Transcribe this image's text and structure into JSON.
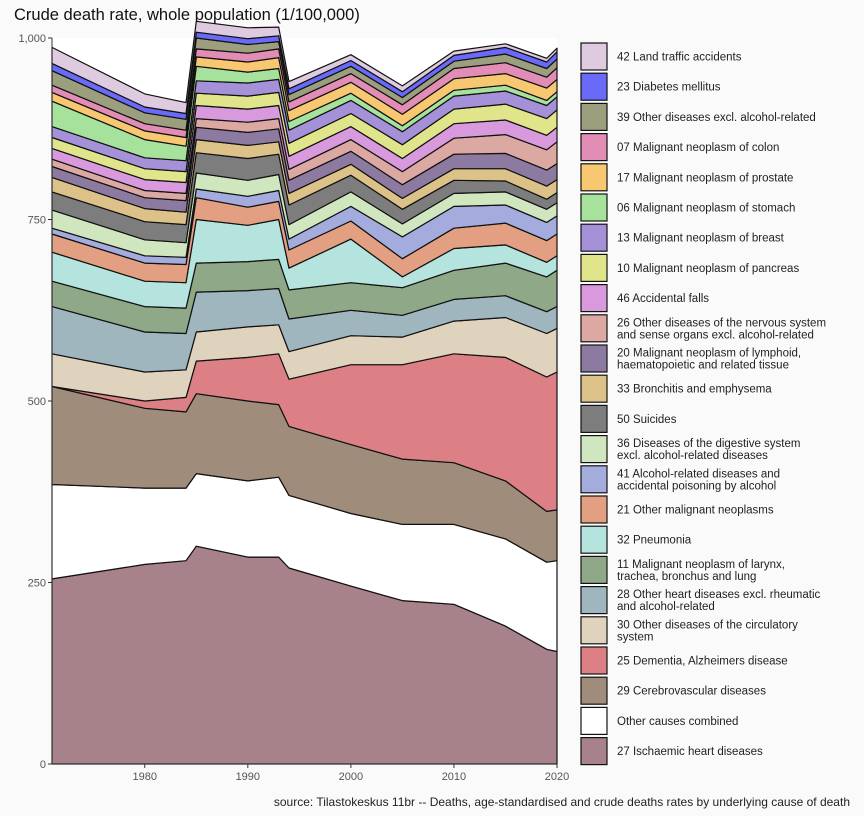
{
  "title": "Crude death rate, whole population (1/100,000)",
  "source": "source: Tilastokeskus 11br -- Deaths, age-standardised and crude deaths rates by underlying cause of death",
  "chart_data": {
    "type": "area",
    "stacked": true,
    "x_range": [
      1971,
      2020
    ],
    "ylim": [
      0,
      1000
    ],
    "y_ticks": [
      0,
      250,
      500,
      750,
      1000
    ],
    "y_tick_labels": [
      "0",
      "250",
      "500",
      "750",
      "1,000"
    ],
    "x_ticks": [
      1980,
      1990,
      2000,
      2010,
      2020
    ],
    "x_tick_labels": [
      "1980",
      "1990",
      "2000",
      "2010",
      "2020"
    ],
    "grid": false,
    "legend_position": "right",
    "x": [
      1971,
      1980,
      1984,
      1985,
      1990,
      1993,
      1994,
      2000,
      2005,
      2010,
      2015,
      2019,
      2020
    ],
    "series": [
      {
        "name": "27 Ischaemic heart diseases",
        "color": "#a8828b",
        "values": [
          255,
          275,
          280,
          300,
          285,
          285,
          270,
          245,
          225,
          220,
          190,
          158,
          155
        ]
      },
      {
        "name": "Other causes combined",
        "color": "#ffffff",
        "values": [
          130,
          105,
          100,
          100,
          105,
          110,
          100,
          100,
          105,
          110,
          120,
          120,
          125
        ]
      },
      {
        "name": "29 Cerebrovascular diseases",
        "color": "#a08c7a",
        "values": [
          135,
          110,
          105,
          110,
          110,
          100,
          95,
          95,
          90,
          85,
          80,
          70,
          70
        ]
      },
      {
        "name": "25 Dementia, Alzheimers disease",
        "color": "#dc8085",
        "values": [
          0,
          10,
          20,
          45,
          60,
          70,
          65,
          110,
          130,
          150,
          170,
          185,
          190
        ]
      },
      {
        "name": "30 Other diseases of the circulatory system",
        "color": "#dfd3bd",
        "values": [
          45,
          40,
          38,
          40,
          42,
          40,
          38,
          40,
          38,
          45,
          55,
          60,
          60
        ]
      },
      {
        "name": "28 Other heart diseases excl. rheumatic and alcohol-related",
        "color": "#9fb6bf",
        "values": [
          65,
          55,
          50,
          55,
          50,
          50,
          45,
          35,
          30,
          30,
          30,
          30,
          30
        ]
      },
      {
        "name": "11 Malignant neoplasm of larynx, trachea, bronchus and lung",
        "color": "#8fa887",
        "values": [
          35,
          35,
          35,
          40,
          40,
          40,
          40,
          38,
          38,
          40,
          45,
          48,
          50
        ]
      },
      {
        "name": "32 Pneumonia",
        "color": "#b4e4dd",
        "values": [
          40,
          35,
          35,
          60,
          50,
          55,
          30,
          60,
          15,
          30,
          25,
          20,
          20
        ]
      },
      {
        "name": "21 Other malignant neoplasms",
        "color": "#e39f81",
        "values": [
          25,
          25,
          25,
          30,
          25,
          25,
          25,
          25,
          25,
          28,
          30,
          30,
          30
        ]
      },
      {
        "name": "41 Alcohol-related diseases and accidental poisoning by alcohol",
        "color": "#a4acde",
        "values": [
          8,
          10,
          10,
          12,
          15,
          15,
          15,
          20,
          30,
          30,
          25,
          25,
          25
        ]
      },
      {
        "name": "36 Diseases of the digestive system excl. alcohol-related diseases",
        "color": "#d0e6be",
        "values": [
          25,
          22,
          20,
          22,
          22,
          22,
          20,
          20,
          18,
          18,
          18,
          18,
          18
        ]
      },
      {
        "name": "50 Suicides",
        "color": "#7d7d7d",
        "values": [
          25,
          25,
          25,
          28,
          30,
          28,
          27,
          23,
          20,
          18,
          15,
          14,
          14
        ]
      },
      {
        "name": "33 Bronchitis and emphysema",
        "color": "#dcc289",
        "values": [
          20,
          18,
          17,
          18,
          18,
          17,
          16,
          15,
          15,
          16,
          17,
          18,
          18
        ]
      },
      {
        "name": "20 Malignant neoplasm of lymphoid, haematopoietic and related tissue",
        "color": "#8d7aa0",
        "values": [
          15,
          15,
          16,
          17,
          18,
          18,
          18,
          18,
          19,
          20,
          21,
          22,
          22
        ]
      },
      {
        "name": "26 Other diseases of the nervous system and sense organs excl. alcohol-related",
        "color": "#dca9a2",
        "values": [
          10,
          10,
          10,
          12,
          14,
          14,
          15,
          16,
          18,
          22,
          26,
          28,
          30
        ]
      },
      {
        "name": "46 Accidental falls",
        "color": "#d89adc",
        "values": [
          15,
          15,
          15,
          18,
          18,
          18,
          18,
          18,
          18,
          20,
          20,
          20,
          20
        ]
      },
      {
        "name": "10 Malignant neoplasm of pancreas",
        "color": "#e0e48a",
        "values": [
          15,
          15,
          15,
          17,
          18,
          18,
          18,
          18,
          19,
          20,
          22,
          23,
          24
        ]
      },
      {
        "name": "13 Malignant neoplasm of breast",
        "color": "#a491d8",
        "values": [
          15,
          15,
          15,
          17,
          18,
          18,
          18,
          18,
          18,
          18,
          18,
          18,
          18
        ]
      },
      {
        "name": "06 Malignant neoplasm of stomach",
        "color": "#a6e29c",
        "values": [
          35,
          25,
          20,
          20,
          15,
          15,
          12,
          10,
          8,
          8,
          8,
          7,
          7
        ]
      },
      {
        "name": "17 Malignant neoplasm of prostate",
        "color": "#f8c771",
        "values": [
          12,
          12,
          12,
          13,
          14,
          15,
          15,
          15,
          16,
          16,
          16,
          17,
          17
        ]
      },
      {
        "name": "07 Malignant neoplasm of colon",
        "color": "#e18db5",
        "values": [
          10,
          10,
          10,
          11,
          12,
          12,
          12,
          12,
          13,
          14,
          15,
          15,
          16
        ]
      },
      {
        "name": "39 Other diseases excl. alcohol-related",
        "color": "#9b9f7d",
        "values": [
          20,
          15,
          15,
          15,
          12,
          10,
          10,
          10,
          10,
          10,
          12,
          12,
          12
        ]
      },
      {
        "name": "23 Diabetes mellitus",
        "color": "#6a6af8",
        "values": [
          10,
          8,
          8,
          8,
          8,
          8,
          8,
          8,
          8,
          8,
          9,
          9,
          10
        ]
      },
      {
        "name": "42 Land traffic accidents",
        "color": "#dfcbe0",
        "values": [
          22,
          18,
          15,
          15,
          15,
          12,
          10,
          8,
          8,
          6,
          5,
          5,
          5
        ]
      }
    ]
  }
}
